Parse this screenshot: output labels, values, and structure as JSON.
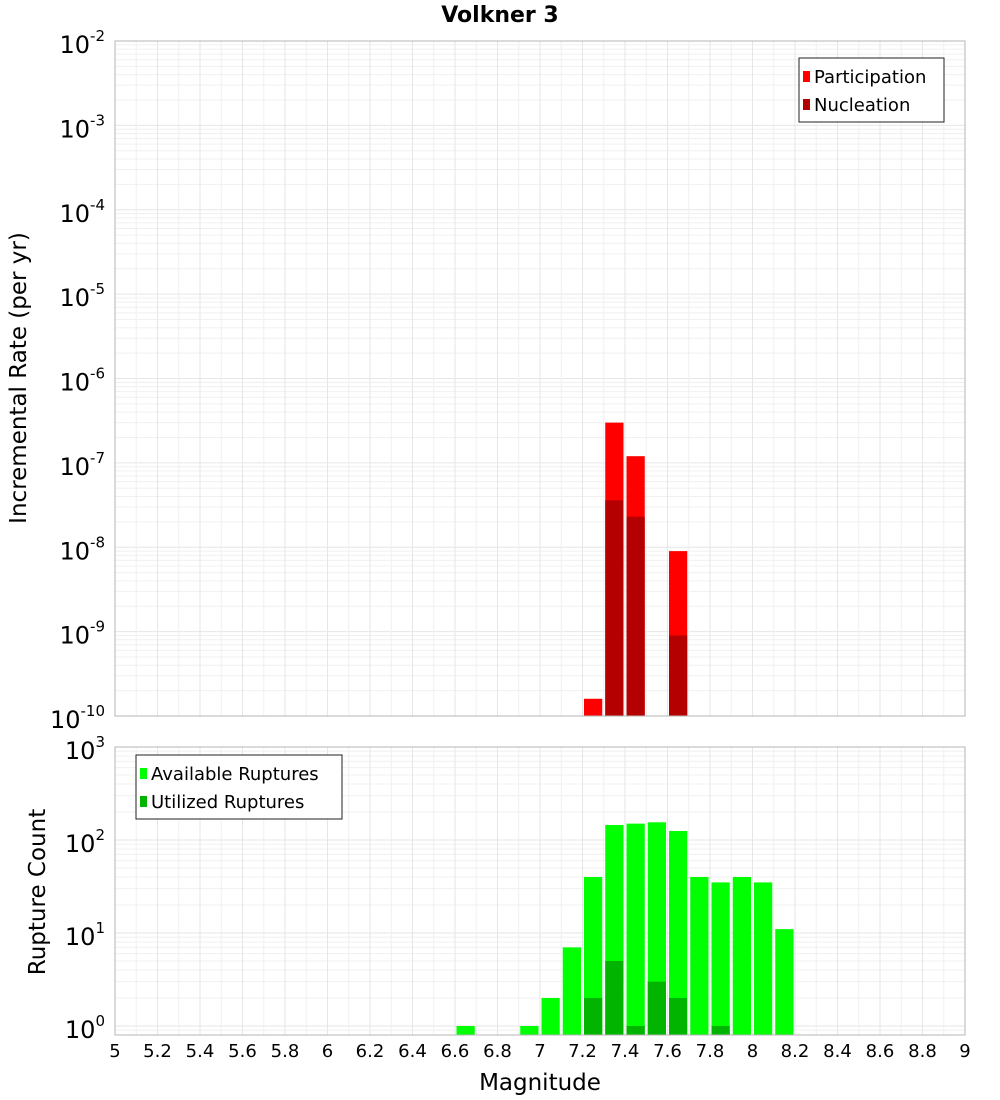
{
  "chart_data": [
    {
      "type": "bar",
      "title": "Volkner 3",
      "ylabel": "Incremental Rate (per yr)",
      "xlabel": "",
      "yscale": "log",
      "ylim": [
        1e-10,
        0.01
      ],
      "xlim": [
        5,
        9
      ],
      "ytick_labels": [
        {
          "base": "10",
          "exp": "-10"
        },
        {
          "base": "10",
          "exp": "-9"
        },
        {
          "base": "10",
          "exp": "-8"
        },
        {
          "base": "10",
          "exp": "-7"
        },
        {
          "base": "10",
          "exp": "-6"
        },
        {
          "base": "10",
          "exp": "-5"
        },
        {
          "base": "10",
          "exp": "-4"
        },
        {
          "base": "10",
          "exp": "-3"
        },
        {
          "base": "10",
          "exp": "-2"
        }
      ],
      "legend_position": "top-right",
      "grid": true,
      "series": [
        {
          "name": "Participation",
          "color": "#ff0000",
          "points": [
            {
              "x": 7.25,
              "y": 1.6e-10
            },
            {
              "x": 7.35,
              "y": 3e-07
            },
            {
              "x": 7.45,
              "y": 1.2e-07
            },
            {
              "x": 7.65,
              "y": 9e-09
            }
          ]
        },
        {
          "name": "Nucleation",
          "color": "#b40000",
          "points": [
            {
              "x": 7.35,
              "y": 3.6e-08
            },
            {
              "x": 7.45,
              "y": 2.3e-08
            },
            {
              "x": 7.65,
              "y": 9e-10
            }
          ]
        }
      ]
    },
    {
      "type": "bar",
      "title": "",
      "ylabel": "Rupture Count",
      "xlabel": "Magnitude",
      "yscale": "log",
      "ylim": [
        0.8,
        1000
      ],
      "xlim": [
        5,
        9
      ],
      "ytick_labels": [
        {
          "base": "10",
          "exp": "0"
        },
        {
          "base": "10",
          "exp": "1"
        },
        {
          "base": "10",
          "exp": "2"
        },
        {
          "base": "10",
          "exp": "3"
        }
      ],
      "xtick_labels": [
        "5",
        "5.2",
        "5.4",
        "5.6",
        "5.8",
        "6",
        "6.2",
        "6.4",
        "6.6",
        "6.8",
        "7",
        "7.2",
        "7.4",
        "7.6",
        "7.8",
        "8",
        "8.2",
        "8.4",
        "8.6",
        "8.8",
        "9"
      ],
      "legend_position": "top-left",
      "grid": true,
      "series": [
        {
          "name": "Available Ruptures",
          "color": "#00ff00",
          "points": [
            {
              "x": 6.65,
              "y": 1
            },
            {
              "x": 6.95,
              "y": 1
            },
            {
              "x": 7.05,
              "y": 2
            },
            {
              "x": 7.15,
              "y": 7
            },
            {
              "x": 7.25,
              "y": 40
            },
            {
              "x": 7.35,
              "y": 145
            },
            {
              "x": 7.45,
              "y": 150
            },
            {
              "x": 7.55,
              "y": 155
            },
            {
              "x": 7.65,
              "y": 125
            },
            {
              "x": 7.75,
              "y": 40
            },
            {
              "x": 7.85,
              "y": 35
            },
            {
              "x": 7.95,
              "y": 40
            },
            {
              "x": 8.05,
              "y": 35
            },
            {
              "x": 8.15,
              "y": 11
            }
          ]
        },
        {
          "name": "Utilized Ruptures",
          "color": "#00b400",
          "points": [
            {
              "x": 7.25,
              "y": 2
            },
            {
              "x": 7.35,
              "y": 5
            },
            {
              "x": 7.45,
              "y": 1
            },
            {
              "x": 7.55,
              "y": 3
            },
            {
              "x": 7.65,
              "y": 2
            },
            {
              "x": 7.85,
              "y": 1
            }
          ]
        }
      ]
    }
  ]
}
